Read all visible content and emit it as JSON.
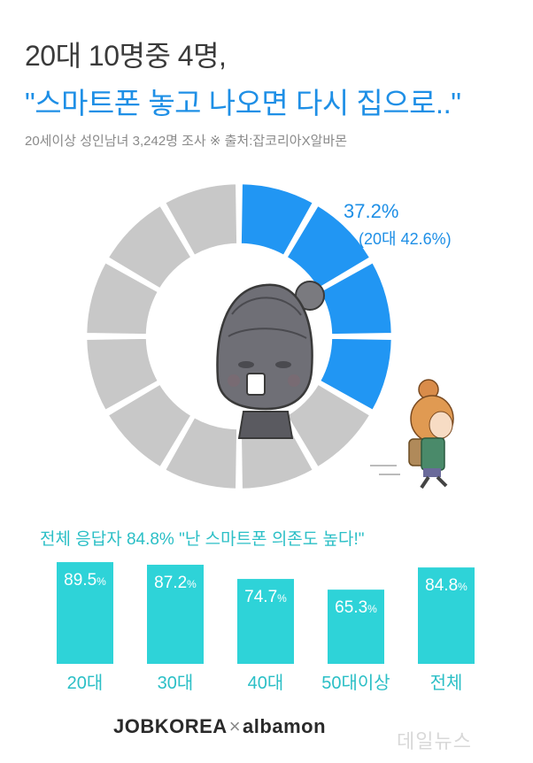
{
  "header": {
    "title_line1": "20대 10명중 4명,",
    "title_line2": "\"스마트폰 놓고 나오면 다시 집으로..\"",
    "subtitle": "20세이상 성인남녀 3,242명  조사  ※ 출처:잡코리아X알바몬"
  },
  "colors": {
    "blue": "#2196f3",
    "gray": "#c8c8c8",
    "teal": "#2ed3d8",
    "teal_text": "#2bbfc6"
  },
  "footer": {
    "logo_left": "JOBKOREA",
    "logo_sep": "×",
    "logo_right": "albamon",
    "watermark": "데일뉴스"
  },
  "icons": [
    "smartphone-anxious-character-icon",
    "running-girl-character-icon"
  ],
  "chart_data": [
    {
      "type": "pie",
      "style": "donut",
      "segments": 12,
      "values": [
        37.2,
        62.8
      ],
      "highlight_label": "37.2%",
      "highlight_sub_label": "(20대 42.6%)"
    },
    {
      "type": "bar",
      "title": "전체 응답자 84.8% \"난 스마트폰 의존도 높다!\"",
      "categories": [
        "20대",
        "30대",
        "40대",
        "50대이상",
        "전체"
      ],
      "values": [
        89.5,
        87.2,
        74.7,
        65.3,
        84.8
      ],
      "value_labels": [
        "89.5",
        "87.2",
        "74.7",
        "65.3",
        "84.8"
      ],
      "unit": "%",
      "ylim": [
        0,
        100
      ]
    }
  ]
}
